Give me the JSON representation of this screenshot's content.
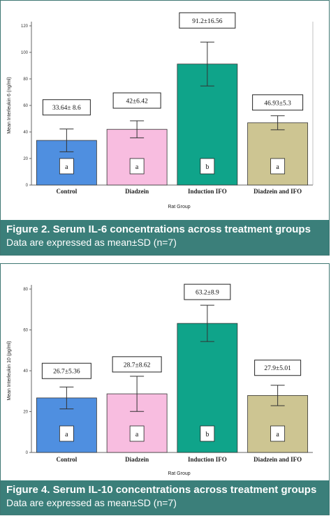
{
  "figures": [
    {
      "caption": {
        "title": "Figure 2. Serum IL-6 concentrations across treatment groups",
        "subtitle": "Data are expressed as mean±SD (n=7)"
      }
    },
    {
      "caption": {
        "title": "Figure 4. Serum IL-10 concentrations across treatment groups",
        "subtitle": "Data are expressed as mean±SD (n=7)"
      }
    }
  ],
  "chart_data": [
    {
      "type": "bar",
      "title": "",
      "xlabel": "Rat Group",
      "ylabel": "Mean Interleukin 6 (ng/ml)",
      "ylim": [
        0,
        120
      ],
      "yticks": [
        0,
        20,
        40,
        60,
        80,
        100,
        120
      ],
      "categories": [
        "Control",
        "Diadzein",
        "Induction IFO",
        "Diadzein and IFO"
      ],
      "values": [
        33.64,
        42,
        91.2,
        46.93
      ],
      "errors": [
        8.6,
        6.42,
        16.56,
        5.3
      ],
      "value_labels": [
        "33.64± 8.6",
        "42±6.42",
        "91.2±16.56",
        "46.93±5.3"
      ],
      "group_labels": [
        "a",
        "a",
        "b",
        "a"
      ],
      "colors": [
        "#4f8fe0",
        "#f8bde0",
        "#0fa48a",
        "#cdc592"
      ],
      "grid": false
    },
    {
      "type": "bar",
      "title": "",
      "xlabel": "Rat Group",
      "ylabel": "Mean Interleukin 10 (pg/ml)",
      "ylim": [
        0,
        80
      ],
      "yticks": [
        0,
        20,
        40,
        60,
        80
      ],
      "categories": [
        "Control",
        "Diadzein",
        "Induction IFO",
        "Diadzein and IFO"
      ],
      "values": [
        26.7,
        28.7,
        63.2,
        27.9
      ],
      "errors": [
        5.36,
        8.62,
        8.9,
        5.01
      ],
      "value_labels": [
        "26.7±5.36",
        "28.7±8.62",
        "63.2±8.9",
        "27.9±5.01"
      ],
      "group_labels": [
        "a",
        "a",
        "b",
        "a"
      ],
      "colors": [
        "#4f8fe0",
        "#f8bde0",
        "#0fa48a",
        "#cdc592"
      ],
      "grid": false
    }
  ]
}
